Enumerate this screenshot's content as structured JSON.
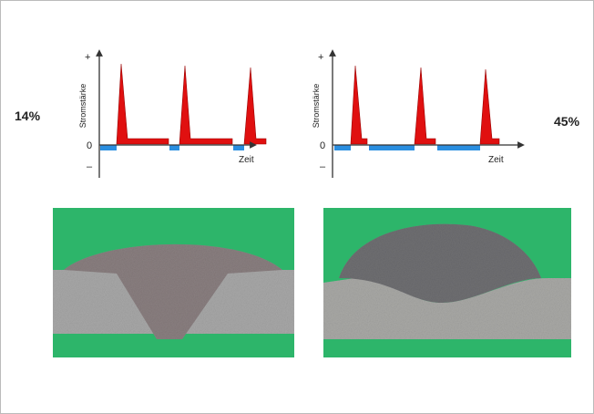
{
  "panels": [
    {
      "percent": "14%",
      "y_label": "Stromstärke",
      "x_label": "Zeit",
      "plus": "+",
      "zero": "0",
      "minus": "–"
    },
    {
      "percent": "45%",
      "y_label": "Stromstärke",
      "x_label": "Zeit",
      "plus": "+",
      "zero": "0",
      "minus": "–"
    }
  ]
}
